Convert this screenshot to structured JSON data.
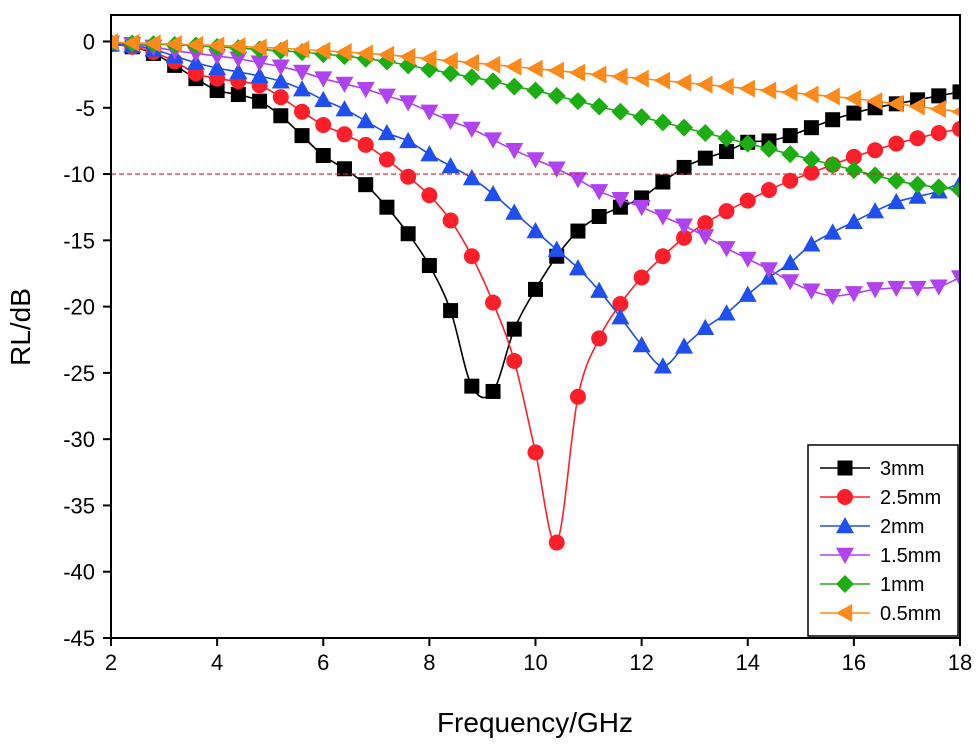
{
  "chart_data": {
    "type": "line",
    "title": "",
    "xlabel": "Frequency/GHz",
    "ylabel": "RL/dB",
    "xlim": [
      2,
      18
    ],
    "ylim": [
      -45,
      2
    ],
    "xticks": [
      2,
      4,
      6,
      8,
      10,
      12,
      14,
      16,
      18
    ],
    "yticks": [
      0,
      -5,
      -10,
      -15,
      -20,
      -25,
      -30,
      -35,
      -40,
      -45
    ],
    "grid": false,
    "legend_position": "bottom-right",
    "reference_line": {
      "y": -10,
      "color": "#e0202a",
      "style": "dashed"
    },
    "series": [
      {
        "name": "3mm",
        "color": "#000000",
        "marker": "square",
        "x": [
          2.0,
          2.4,
          2.8,
          3.2,
          3.6,
          4.0,
          4.4,
          4.8,
          5.2,
          5.6,
          6.0,
          6.4,
          6.8,
          7.2,
          7.6,
          8.0,
          8.4,
          8.8,
          9.2,
          9.6,
          10.0,
          10.4,
          10.8,
          11.2,
          11.6,
          12.0,
          12.4,
          12.8,
          13.2,
          13.6,
          14.0,
          14.4,
          14.8,
          15.2,
          15.6,
          16.0,
          16.4,
          16.8,
          17.2,
          17.6,
          18.0
        ],
        "y": [
          -0.2,
          -0.4,
          -0.9,
          -1.8,
          -2.8,
          -3.7,
          -4.0,
          -4.5,
          -5.6,
          -7.1,
          -8.6,
          -9.6,
          -10.8,
          -12.5,
          -14.5,
          -16.9,
          -20.3,
          -26.0,
          -26.4,
          -21.7,
          -18.7,
          -16.2,
          -14.3,
          -13.2,
          -12.5,
          -11.8,
          -10.6,
          -9.5,
          -8.8,
          -8.3,
          -7.6,
          -7.5,
          -7.1,
          -6.5,
          -5.9,
          -5.4,
          -5.0,
          -4.7,
          -4.4,
          -4.1,
          -3.8
        ]
      },
      {
        "name": "2.5mm",
        "color": "#ff1f2b",
        "marker": "circle",
        "x": [
          2.0,
          2.4,
          2.8,
          3.2,
          3.6,
          4.0,
          4.4,
          4.8,
          5.2,
          5.6,
          6.0,
          6.4,
          6.8,
          7.2,
          7.6,
          8.0,
          8.4,
          8.8,
          9.2,
          9.6,
          10.0,
          10.4,
          10.8,
          11.2,
          11.6,
          12.0,
          12.4,
          12.8,
          13.2,
          13.6,
          14.0,
          14.4,
          14.8,
          15.2,
          15.6,
          16.0,
          16.4,
          16.8,
          17.2,
          17.6,
          18.0
        ],
        "y": [
          -0.2,
          -0.4,
          -0.8,
          -1.5,
          -2.4,
          -2.8,
          -3.0,
          -3.3,
          -4.2,
          -5.3,
          -6.3,
          -7.0,
          -7.8,
          -8.9,
          -10.2,
          -11.6,
          -13.5,
          -16.2,
          -19.7,
          -24.1,
          -31.0,
          -37.8,
          -26.8,
          -22.4,
          -19.8,
          -17.8,
          -16.2,
          -14.8,
          -13.7,
          -12.8,
          -12.0,
          -11.2,
          -10.5,
          -9.9,
          -9.3,
          -8.7,
          -8.2,
          -7.7,
          -7.3,
          -6.9,
          -6.6
        ]
      },
      {
        "name": "2mm",
        "color": "#1f4ff0",
        "marker": "triangle-up",
        "x": [
          2.0,
          2.4,
          2.8,
          3.2,
          3.6,
          4.0,
          4.4,
          4.8,
          5.2,
          5.6,
          6.0,
          6.4,
          6.8,
          7.2,
          7.6,
          8.0,
          8.4,
          8.8,
          9.2,
          9.6,
          10.0,
          10.4,
          10.8,
          11.2,
          11.6,
          12.0,
          12.4,
          12.8,
          13.2,
          13.6,
          14.0,
          14.4,
          14.8,
          15.2,
          15.6,
          16.0,
          16.4,
          16.8,
          17.2,
          17.6,
          18.0
        ],
        "y": [
          -0.2,
          -0.3,
          -0.6,
          -1.1,
          -1.6,
          -2.0,
          -2.3,
          -2.6,
          -3.0,
          -3.6,
          -4.4,
          -5.1,
          -6.0,
          -6.9,
          -7.5,
          -8.5,
          -9.4,
          -10.3,
          -11.5,
          -12.9,
          -14.3,
          -15.7,
          -17.1,
          -18.8,
          -20.8,
          -22.9,
          -24.5,
          -23.0,
          -21.6,
          -20.5,
          -19.1,
          -17.8,
          -16.7,
          -15.3,
          -14.4,
          -13.6,
          -12.8,
          -12.1,
          -11.7,
          -11.3,
          -10.7
        ]
      },
      {
        "name": "1.5mm",
        "color": "#b042f0",
        "marker": "triangle-down",
        "x": [
          2.0,
          2.4,
          2.8,
          3.2,
          3.6,
          4.0,
          4.4,
          4.8,
          5.2,
          5.6,
          6.0,
          6.4,
          6.8,
          7.2,
          7.6,
          8.0,
          8.4,
          8.8,
          9.2,
          9.6,
          10.0,
          10.4,
          10.8,
          11.2,
          11.6,
          12.0,
          12.4,
          12.8,
          13.2,
          13.6,
          14.0,
          14.4,
          14.8,
          15.2,
          15.6,
          16.0,
          16.4,
          16.8,
          17.2,
          17.6,
          18.0
        ],
        "y": [
          -0.1,
          -0.2,
          -0.4,
          -0.7,
          -0.9,
          -1.1,
          -1.3,
          -1.6,
          -1.9,
          -2.3,
          -2.8,
          -3.2,
          -3.6,
          -4.1,
          -4.6,
          -5.3,
          -6.0,
          -6.6,
          -7.4,
          -8.2,
          -8.9,
          -9.6,
          -10.4,
          -11.3,
          -11.9,
          -12.5,
          -13.2,
          -13.9,
          -14.7,
          -15.6,
          -16.4,
          -17.2,
          -18.1,
          -18.8,
          -19.2,
          -19.0,
          -18.7,
          -18.6,
          -18.6,
          -18.5,
          -17.8
        ]
      },
      {
        "name": "1mm",
        "color": "#1cad12",
        "marker": "diamond",
        "x": [
          2.0,
          2.4,
          2.8,
          3.2,
          3.6,
          4.0,
          4.4,
          4.8,
          5.2,
          5.6,
          6.0,
          6.4,
          6.8,
          7.2,
          7.6,
          8.0,
          8.4,
          8.8,
          9.2,
          9.6,
          10.0,
          10.4,
          10.8,
          11.2,
          11.6,
          12.0,
          12.4,
          12.8,
          13.2,
          13.6,
          14.0,
          14.4,
          14.8,
          15.2,
          15.6,
          16.0,
          16.4,
          16.8,
          17.2,
          17.6,
          18.0
        ],
        "y": [
          -0.1,
          -0.15,
          -0.2,
          -0.25,
          -0.3,
          -0.4,
          -0.5,
          -0.6,
          -0.7,
          -0.8,
          -0.95,
          -1.1,
          -1.3,
          -1.5,
          -1.8,
          -2.1,
          -2.4,
          -2.7,
          -3.0,
          -3.4,
          -3.7,
          -4.1,
          -4.5,
          -4.9,
          -5.3,
          -5.7,
          -6.1,
          -6.5,
          -6.9,
          -7.3,
          -7.7,
          -8.1,
          -8.5,
          -8.9,
          -9.3,
          -9.7,
          -10.1,
          -10.5,
          -10.8,
          -11.0,
          -11.2
        ]
      },
      {
        "name": "0.5mm",
        "color": "#ff8a1c",
        "marker": "triangle-left",
        "x": [
          2.0,
          2.4,
          2.8,
          3.2,
          3.6,
          4.0,
          4.4,
          4.8,
          5.2,
          5.6,
          6.0,
          6.4,
          6.8,
          7.2,
          7.6,
          8.0,
          8.4,
          8.8,
          9.2,
          9.6,
          10.0,
          10.4,
          10.8,
          11.2,
          11.6,
          12.0,
          12.4,
          12.8,
          13.2,
          13.6,
          14.0,
          14.4,
          14.8,
          15.2,
          15.6,
          16.0,
          16.4,
          16.8,
          17.2,
          17.6,
          18.0
        ],
        "y": [
          -0.05,
          -0.1,
          -0.15,
          -0.2,
          -0.25,
          -0.3,
          -0.35,
          -0.45,
          -0.5,
          -0.6,
          -0.7,
          -0.8,
          -0.9,
          -1.0,
          -1.15,
          -1.3,
          -1.45,
          -1.6,
          -1.75,
          -1.9,
          -2.05,
          -2.2,
          -2.35,
          -2.5,
          -2.65,
          -2.8,
          -2.95,
          -3.1,
          -3.25,
          -3.4,
          -3.55,
          -3.7,
          -3.85,
          -4.0,
          -4.15,
          -4.3,
          -4.5,
          -4.7,
          -4.9,
          -5.1,
          -5.3
        ]
      }
    ]
  }
}
